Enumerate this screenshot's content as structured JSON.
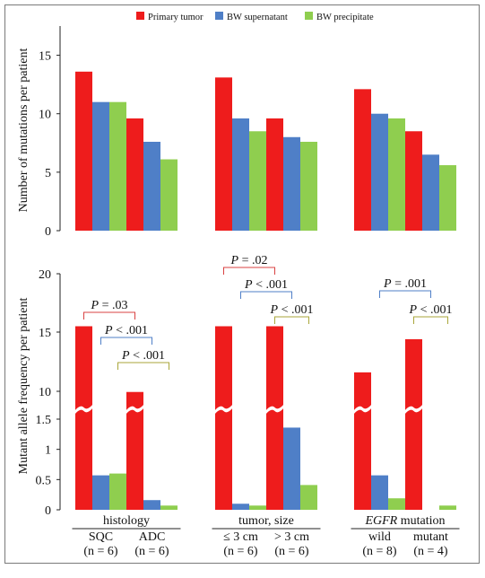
{
  "legend": {
    "position": "top-center",
    "items": [
      {
        "label": "Primary tumor",
        "color": "#ee1c1c"
      },
      {
        "label": "BW supernatant",
        "color": "#4f7fc7"
      },
      {
        "label": "BW precipitate",
        "color": "#8fce4f"
      }
    ]
  },
  "groups": [
    {
      "title": "histology",
      "title_italic_part": "",
      "subgroups": [
        {
          "name": "SQC",
          "n": "(n = 6)"
        },
        {
          "name": "ADC",
          "n": "(n = 6)"
        }
      ]
    },
    {
      "title": "tumor, size",
      "title_italic_part": "",
      "subgroups": [
        {
          "name": "≤ 3 cm",
          "n": "(n = 6)"
        },
        {
          "name": "> 3 cm",
          "n": "(n = 6)"
        }
      ]
    },
    {
      "title": " mutation",
      "title_italic_part": "EGFR",
      "subgroups": [
        {
          "name": "wild",
          "n": "(n = 8)"
        },
        {
          "name": "mutant",
          "n": "(n = 4)"
        }
      ]
    }
  ],
  "chart_data": [
    {
      "type": "bar",
      "ylabel": "Number of mutations per patient",
      "ylim": [
        0,
        17.5
      ],
      "yticks": [
        0,
        5,
        10,
        15
      ],
      "categories": [
        "SQC",
        "ADC",
        "≤ 3 cm",
        "> 3 cm",
        "wild",
        "mutant"
      ],
      "series": [
        {
          "name": "Primary tumor",
          "values": [
            13.6,
            9.6,
            13.1,
            9.6,
            12.1,
            8.5
          ]
        },
        {
          "name": "BW supernatant",
          "values": [
            11.0,
            7.6,
            9.6,
            8.0,
            10.0,
            6.5
          ]
        },
        {
          "name": "BW precipitate",
          "values": [
            11.0,
            6.1,
            8.5,
            7.6,
            9.6,
            5.6
          ]
        }
      ],
      "grid": false
    },
    {
      "type": "bar",
      "ylabel": "Mutant allele frequency per patient",
      "broken_axis": true,
      "yticks": [
        "0",
        "0.5",
        "1",
        "1.5",
        "10",
        "15",
        "20"
      ],
      "categories": [
        "SQC",
        "ADC",
        "≤ 3 cm",
        "> 3 cm",
        "wild",
        "mutant"
      ],
      "series": [
        {
          "name": "Primary tumor",
          "values": [
            15.5,
            9.8,
            15.5,
            15.5,
            11.6,
            14.4
          ]
        },
        {
          "name": "BW supernatant",
          "values": [
            0.57,
            0.16,
            0.1,
            1.36,
            0.57,
            0.0
          ]
        },
        {
          "name": "BW precipitate",
          "values": [
            0.6,
            0.07,
            0.07,
            0.41,
            0.19,
            0.07
          ]
        }
      ],
      "annotations": [
        {
          "text": "P = .03",
          "category_pair": [
            "SQC",
            "ADC"
          ],
          "series_pair": [
            "Primary tumor",
            "Primary tumor"
          ],
          "color": "#d94040"
        },
        {
          "text": "P < .001",
          "category_pair": [
            "SQC",
            "ADC"
          ],
          "series_pair": [
            "BW supernatant",
            "BW supernatant"
          ],
          "color": "#4f7fc7"
        },
        {
          "text": "P < .001",
          "category_pair": [
            "SQC",
            "ADC"
          ],
          "series_pair": [
            "BW precipitate",
            "BW precipitate"
          ],
          "color": "#a9a63a"
        },
        {
          "text": "P = .02",
          "category_pair": [
            "≤ 3 cm",
            "> 3 cm"
          ],
          "series_pair": [
            "Primary tumor",
            "Primary tumor"
          ],
          "color": "#d94040"
        },
        {
          "text": "P < .001",
          "category_pair": [
            "≤ 3 cm",
            "> 3 cm"
          ],
          "series_pair": [
            "BW supernatant",
            "BW supernatant"
          ],
          "color": "#4f7fc7"
        },
        {
          "text": "P < .001",
          "category_pair": [
            "> 3 cm",
            "> 3 cm"
          ],
          "series_pair": [
            "Primary tumor",
            "BW precipitate"
          ],
          "color": "#a9a63a"
        },
        {
          "text": "P = .001",
          "category_pair": [
            "wild",
            "mutant"
          ],
          "series_pair": [
            "BW supernatant",
            "BW supernatant"
          ],
          "color": "#4f7fc7"
        },
        {
          "text": "P < .001",
          "category_pair": [
            "mutant",
            "mutant"
          ],
          "series_pair": [
            "Primary tumor",
            "BW precipitate"
          ],
          "color": "#a9a63a"
        }
      ]
    }
  ]
}
